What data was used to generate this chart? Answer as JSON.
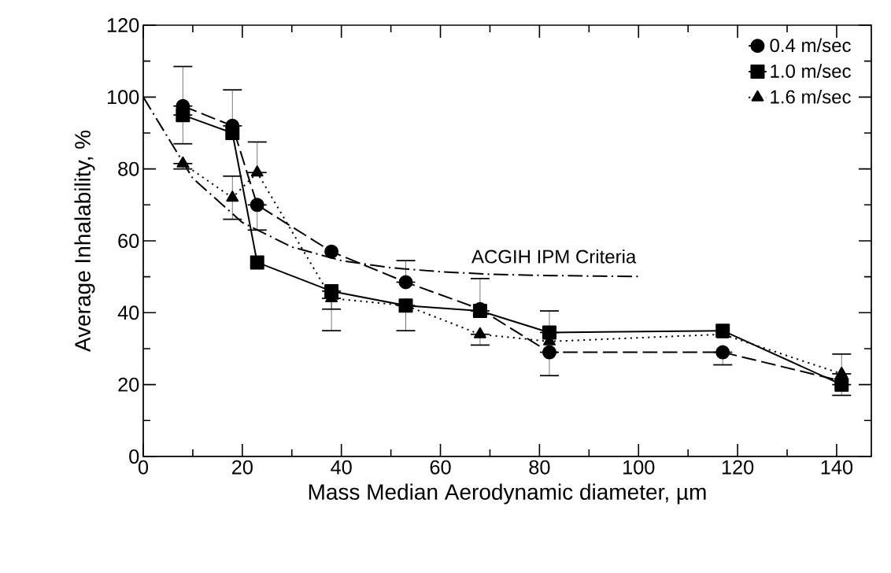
{
  "chart_data": {
    "type": "line",
    "xlabel": "Mass Median Aerodynamic diameter, µm",
    "ylabel": "Average Inhalability, %",
    "xlim": [
      0,
      147
    ],
    "ylim": [
      0,
      120
    ],
    "xticks": [
      0,
      20,
      40,
      60,
      80,
      100,
      120,
      140
    ],
    "yticks": [
      0,
      20,
      40,
      60,
      80,
      100,
      120
    ],
    "grid": false,
    "legend": "top right",
    "x": [
      8,
      18,
      23,
      38,
      53,
      68,
      82,
      117,
      141
    ],
    "series": [
      {
        "name": "0.4 m/sec",
        "color": "#000000",
        "marker": "circle",
        "line_style": "dashed",
        "values": [
          97.5,
          92,
          70,
          57,
          48.5,
          41,
          29,
          29,
          21
        ],
        "errors": [
          [
            97.5,
            108.5
          ],
          [
            92,
            102
          ],
          [
            63,
            70
          ],
          null,
          [
            48.5,
            54.5
          ],
          null,
          [
            22.5,
            29
          ],
          [
            25.5,
            29
          ],
          null
        ]
      },
      {
        "name": "1.0 m/sec",
        "color": "#000000",
        "marker": "square",
        "line_style": "solid",
        "values": [
          95,
          90,
          54,
          46,
          42,
          40.5,
          34.5,
          35,
          20
        ],
        "errors": [
          [
            87,
            95
          ],
          null,
          null,
          [
            41,
            46
          ],
          [
            35,
            42
          ],
          [
            40.5,
            49.5
          ],
          [
            34.5,
            40.5
          ],
          null,
          [
            17,
            20
          ]
        ]
      },
      {
        "name": "1.6 m/sec",
        "color": "#000000",
        "marker": "triangle",
        "line_style": "dotted",
        "values": [
          81.5,
          72,
          79,
          44,
          42,
          34,
          32,
          34,
          23
        ],
        "errors": [
          [
            80,
            81.5
          ],
          6,
          [
            79,
            87.5
          ],
          [
            35,
            44
          ],
          null,
          [
            31,
            34
          ],
          null,
          null,
          [
            23,
            28.5
          ]
        ]
      },
      {
        "name": "ACGIH IPM Criteria",
        "color": "#000000",
        "marker": "none",
        "line_style": "dashdot",
        "x": [
          0,
          10,
          20,
          30,
          40,
          50,
          60,
          70,
          80,
          90,
          100
        ],
        "values": [
          100,
          77.4,
          65.1,
          58.3,
          54.5,
          52.5,
          51.4,
          50.7,
          50.4,
          50.2,
          50.1
        ]
      }
    ]
  }
}
